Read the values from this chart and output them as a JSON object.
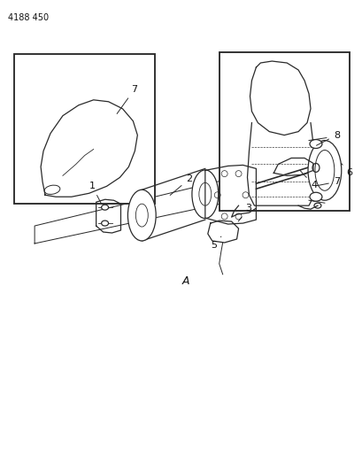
{
  "title": "4188 450",
  "bg_color": "#ffffff",
  "lc": "#2a2a2a",
  "label_color": "#111111",
  "title_fontsize": 7,
  "label_fontsize": 8,
  "fig_width": 4.1,
  "fig_height": 5.33,
  "dpi": 100
}
